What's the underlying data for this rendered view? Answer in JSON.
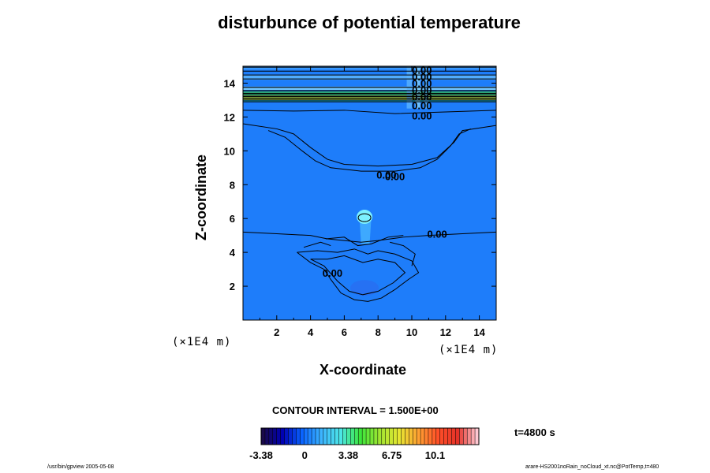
{
  "chart_data": {
    "type": "heatmap",
    "title": "disturbunce of potential temperature",
    "xlabel": "X-coordinate",
    "ylabel": "Z-coordinate",
    "x_unit": "(×1E4 m)",
    "y_unit": "(×1E4 m)",
    "xlim": [
      0,
      15
    ],
    "ylim": [
      0,
      15
    ],
    "x_ticks": [
      2,
      4,
      6,
      8,
      10,
      12,
      14
    ],
    "y_ticks": [
      2,
      4,
      6,
      8,
      10,
      12,
      14
    ],
    "contour_interval_label": "CONTOUR INTERVAL = 1.500E+00",
    "time_label": "t=4800 s",
    "colorbar": {
      "range": [
        -3.38,
        13.5
      ],
      "tick_values": [
        -3.38,
        0,
        3.38,
        6.75,
        10.1
      ],
      "tick_labels": [
        "-3.38",
        "0",
        "3.38",
        "6.75",
        "10.1"
      ],
      "colors": [
        "#1a0a4a",
        "#0000b4",
        "#0a64ff",
        "#3cb4ff",
        "#4ce6e6",
        "#3ce63c",
        "#a0e632",
        "#e6e632",
        "#ffa032",
        "#ff5028",
        "#e63228",
        "#ffc8d2"
      ]
    },
    "contour_labels": [
      {
        "text": "0.00",
        "x": 10.6,
        "z": 14.8
      },
      {
        "text": "0.00",
        "x": 10.6,
        "z": 14.4
      },
      {
        "text": "0.00",
        "x": 10.6,
        "z": 14.0
      },
      {
        "text": "0.00",
        "x": 10.6,
        "z": 13.6
      },
      {
        "text": "0.00",
        "x": 10.6,
        "z": 13.2
      },
      {
        "text": "0.00",
        "x": 10.6,
        "z": 12.7
      },
      {
        "text": "0.00",
        "x": 10.6,
        "z": 12.1
      },
      {
        "text": "0.00",
        "x": 8.5,
        "z": 8.6
      },
      {
        "text": "0.00",
        "x": 9.0,
        "z": 8.5
      },
      {
        "text": "0.00",
        "x": 11.5,
        "z": 5.1
      },
      {
        "text": "0.00",
        "x": 5.3,
        "z": 2.8
      }
    ]
  },
  "footer": {
    "left": "/usr/bin/gpview 2005-05-08",
    "right": "arare-HS2001noRain_noCloud_xt.nc@PotTemp,t=480"
  }
}
